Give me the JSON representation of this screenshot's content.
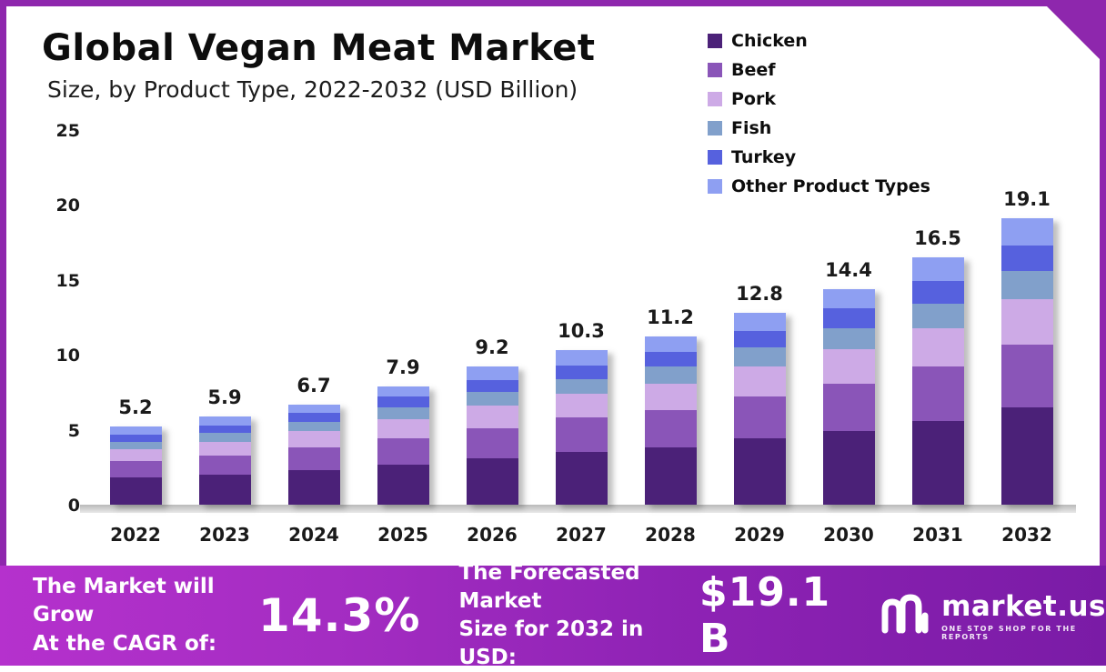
{
  "header": {
    "title": "Global Vegan Meat Market",
    "subtitle": "Size, by Product Type, 2022-2032 (USD Billion)"
  },
  "chart_data": {
    "type": "bar",
    "stacked": true,
    "title": "Global Vegan Meat Market Size, by Product Type, 2022-2032 (USD Billion)",
    "xlabel": "",
    "ylabel": "",
    "ylim": [
      0,
      25
    ],
    "yticks": [
      0,
      5,
      10,
      15,
      20,
      25
    ],
    "grid": false,
    "legend_position": "top-right",
    "categories": [
      "2022",
      "2023",
      "2024",
      "2025",
      "2026",
      "2027",
      "2028",
      "2029",
      "2030",
      "2031",
      "2032"
    ],
    "totals": [
      5.2,
      5.9,
      6.7,
      7.9,
      9.2,
      10.3,
      11.2,
      12.8,
      14.4,
      16.5,
      19.1
    ],
    "series": [
      {
        "name": "Chicken",
        "color": "#4b2178",
        "values": [
          1.8,
          2.0,
          2.3,
          2.7,
          3.1,
          3.5,
          3.8,
          4.4,
          4.9,
          5.6,
          6.5
        ]
      },
      {
        "name": "Beef",
        "color": "#8a55b8",
        "values": [
          1.1,
          1.3,
          1.5,
          1.7,
          2.0,
          2.3,
          2.5,
          2.8,
          3.2,
          3.6,
          4.2
        ]
      },
      {
        "name": "Pork",
        "color": "#cdaae6",
        "values": [
          0.8,
          0.9,
          1.1,
          1.3,
          1.5,
          1.6,
          1.8,
          2.0,
          2.3,
          2.6,
          3.0
        ]
      },
      {
        "name": "Fish",
        "color": "#81a0cb",
        "values": [
          0.5,
          0.6,
          0.6,
          0.8,
          0.9,
          1.0,
          1.1,
          1.3,
          1.4,
          1.6,
          1.9
        ]
      },
      {
        "name": "Turkey",
        "color": "#5661de",
        "values": [
          0.5,
          0.5,
          0.6,
          0.7,
          0.8,
          0.9,
          1.0,
          1.1,
          1.3,
          1.5,
          1.7
        ]
      },
      {
        "name": "Other Product Types",
        "color": "#8e9ff2",
        "values": [
          0.5,
          0.6,
          0.6,
          0.7,
          0.9,
          1.0,
          1.0,
          1.2,
          1.3,
          1.6,
          1.8
        ]
      }
    ]
  },
  "banner": {
    "cagr_label_line1": "The Market will Grow",
    "cagr_label_line2": "At the CAGR of:",
    "cagr_value": "14.3%",
    "forecast_label_line1": "The Forecasted Market",
    "forecast_label_line2": "Size for 2032 in USD:",
    "forecast_value": "$19.1 B",
    "brand": "market.us",
    "brand_tagline": "ONE STOP SHOP FOR THE REPORTS"
  },
  "frame": {
    "accent_color": "#8e27ad"
  }
}
